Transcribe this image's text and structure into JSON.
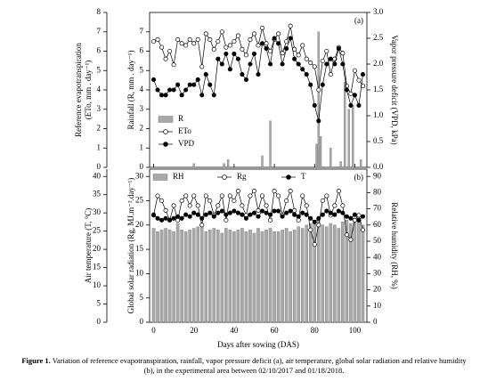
{
  "chart_data": [
    {
      "type": "combo",
      "panel_label": "(a)",
      "xlim": [
        -2,
        106
      ],
      "xticks": [
        0,
        20,
        40,
        60,
        80,
        100
      ],
      "ylabel": [
        "Reference evapotranspiration",
        "(ETo, mm . day⁻¹)"
      ],
      "ylim": [
        0,
        8
      ],
      "yticks": [
        0,
        1,
        2,
        3,
        4,
        5,
        6,
        7,
        8
      ],
      "y3label": "Rainfall (R, mm . day⁻¹)",
      "y3lim": [
        0,
        8
      ],
      "y3ticks": [
        0,
        1,
        2,
        3,
        4,
        5,
        6,
        7
      ],
      "y2label": "Vapor pressure deficit (VPD, kPa)",
      "y2lim": [
        0,
        3
      ],
      "y2ticks": [
        {
          "value": 0,
          "label": "0.0"
        },
        0.5,
        {
          "value": 1,
          "label": "1.0"
        },
        1.5,
        {
          "value": 2,
          "label": "2.0"
        },
        2.5,
        {
          "value": 3,
          "label": "3.0"
        }
      ],
      "x": [
        0,
        2,
        4,
        6,
        8,
        10,
        12,
        14,
        16,
        18,
        20,
        22,
        24,
        26,
        28,
        30,
        32,
        34,
        36,
        38,
        40,
        42,
        44,
        46,
        48,
        50,
        52,
        54,
        56,
        58,
        60,
        62,
        64,
        66,
        68,
        70,
        72,
        74,
        76,
        78,
        80,
        82,
        84,
        86,
        88,
        90,
        92,
        94,
        96,
        98,
        100,
        102,
        104
      ],
      "series": [
        {
          "name": "R",
          "type": "bar",
          "axis": "y3",
          "color": "#a8a8a8",
          "x": [
            20,
            35,
            37,
            54,
            58,
            81,
            82,
            83,
            88,
            93,
            95,
            97,
            99,
            103
          ],
          "values": [
            0.2,
            0.2,
            0.4,
            0.6,
            2.4,
            1.2,
            7.0,
            1.6,
            1.0,
            0.3,
            4.4,
            3.0,
            3.2,
            0.4
          ]
        },
        {
          "name": "ETo",
          "type": "line",
          "marker": "open",
          "axis": "y",
          "color": "#000000",
          "values": [
            6.5,
            6.6,
            6.2,
            5.6,
            6.0,
            5.3,
            6.6,
            6.4,
            6.3,
            6.6,
            6.4,
            6.6,
            5.2,
            6.9,
            6.6,
            6.1,
            6.5,
            7.0,
            6.2,
            6.3,
            6.5,
            6.8,
            6.1,
            5.8,
            6.6,
            6.9,
            6.3,
            7.2,
            6.4,
            6.0,
            6.6,
            6.9,
            5.9,
            6.5,
            7.3,
            6.1,
            5.8,
            6.3,
            5.6,
            5.4,
            5.2,
            4.0,
            5.5,
            6.0,
            4.8,
            5.6,
            6.2,
            5.9,
            4.2,
            3.8,
            5.0,
            4.5,
            4.2
          ]
        },
        {
          "name": "VPD",
          "type": "line",
          "marker": "filled",
          "axis": "y2",
          "color": "#000000",
          "values": [
            1.7,
            1.5,
            1.4,
            1.4,
            1.5,
            1.5,
            1.6,
            1.4,
            1.5,
            1.6,
            1.6,
            1.7,
            1.4,
            1.8,
            1.6,
            1.4,
            2.1,
            2.0,
            2.2,
            1.9,
            2.2,
            2.1,
            1.8,
            1.7,
            2.0,
            2.2,
            1.8,
            2.4,
            2.3,
            2.0,
            2.5,
            2.4,
            2.0,
            2.3,
            2.5,
            2.1,
            2.0,
            1.9,
            1.8,
            1.6,
            1.2,
            0.9,
            1.6,
            2.0,
            2.1,
            2.0,
            2.3,
            2.0,
            1.5,
            1.2,
            1.4,
            1.2,
            1.8
          ]
        }
      ]
    },
    {
      "type": "combo",
      "panel_label": "(b)",
      "xlabel": "Days after sowing (DAS)",
      "xlim": [
        -2,
        106
      ],
      "xticks": [
        0,
        20,
        40,
        60,
        80,
        100
      ],
      "ylabel": "Air temperature (T, °C)",
      "ylim": [
        0,
        42
      ],
      "yticks": [
        0,
        5,
        10,
        15,
        20,
        25,
        30,
        35,
        40
      ],
      "y3label": "Global solar radiation (Rg, MJ.m⁻².day⁻¹)",
      "y3lim": [
        0,
        31.5
      ],
      "y3ticks": [
        0,
        5,
        10,
        15,
        20,
        25,
        30
      ],
      "y2label": "Relative humidity (RH, %)",
      "y2lim": [
        0,
        94.5
      ],
      "y2ticks": [
        0,
        10,
        20,
        30,
        40,
        50,
        60,
        70,
        80,
        90
      ],
      "x": [
        0,
        2,
        4,
        6,
        8,
        10,
        12,
        14,
        16,
        18,
        20,
        22,
        24,
        26,
        28,
        30,
        32,
        34,
        36,
        38,
        40,
        42,
        44,
        46,
        48,
        50,
        52,
        54,
        56,
        58,
        60,
        62,
        64,
        66,
        68,
        70,
        72,
        74,
        76,
        78,
        80,
        82,
        84,
        86,
        88,
        90,
        92,
        94,
        96,
        98,
        100,
        102,
        104
      ],
      "series": [
        {
          "name": "RH",
          "type": "bar",
          "axis": "y2",
          "color": "#a8a8a8",
          "values": [
            58,
            56,
            57,
            58,
            57,
            56,
            61,
            57,
            56,
            57,
            58,
            59,
            60,
            56,
            57,
            58,
            57,
            55,
            58,
            57,
            56,
            57,
            58,
            56,
            57,
            55,
            58,
            56,
            57,
            58,
            56,
            56,
            57,
            58,
            56,
            57,
            59,
            58,
            60,
            61,
            63,
            64,
            60,
            59,
            61,
            60,
            58,
            62,
            63,
            61,
            62,
            64,
            60
          ]
        },
        {
          "name": "Rg",
          "type": "line",
          "marker": "open",
          "axis": "y3",
          "color": "#000000",
          "values": [
            22,
            26,
            25,
            23,
            21,
            24,
            21,
            25,
            26,
            24,
            26,
            24,
            20,
            26,
            25,
            22,
            24,
            26,
            21,
            26,
            25,
            27,
            24,
            22,
            26,
            27,
            23,
            26,
            24,
            21,
            27,
            26,
            22,
            25,
            27,
            23,
            21,
            26,
            24,
            19,
            16,
            20,
            25,
            26,
            22,
            24,
            27,
            24,
            18,
            17,
            21,
            22,
            19
          ]
        },
        {
          "name": "T",
          "type": "line",
          "marker": "filled",
          "axis": "y",
          "color": "#000000",
          "values": [
            29.5,
            28.5,
            28.0,
            28.5,
            28.0,
            28.5,
            29.0,
            28.5,
            29.5,
            29.0,
            30.0,
            29.5,
            28.5,
            29.5,
            30.0,
            29.0,
            30.0,
            30.5,
            29.5,
            30.0,
            30.5,
            30.0,
            29.5,
            28.5,
            29.5,
            30.0,
            29.0,
            30.5,
            30.0,
            29.5,
            30.5,
            30.5,
            29.0,
            30.0,
            30.5,
            29.5,
            29.0,
            30.0,
            29.5,
            28.5,
            27.5,
            28.5,
            29.5,
            30.5,
            30.0,
            29.5,
            30.5,
            30.0,
            29.0,
            28.5,
            29.5,
            28.0,
            29.0
          ]
        }
      ]
    }
  ],
  "caption": {
    "label": "Figure 1.",
    "text": "Variation of reference evapotranspiration, rainfall, vapor pressure deficit (a), air temperature, global solar radiation and relative humidity (b), in the experimental area between 02/10/2017 and 01/18/2018."
  }
}
